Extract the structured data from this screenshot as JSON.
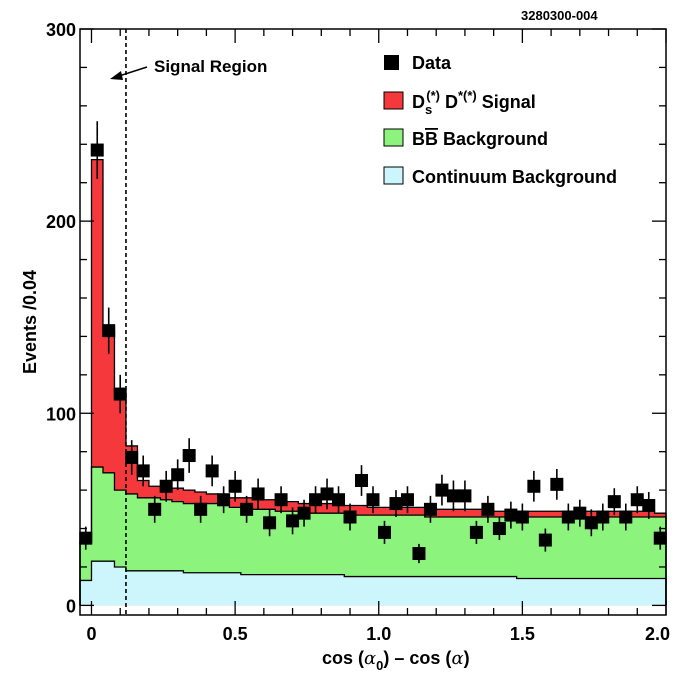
{
  "chart_data": {
    "type": "histogram",
    "plot_id": "3280300-004",
    "xlabel": "cos (α₀) – cos (α)",
    "ylabel": "Events /0.04",
    "xlim": [
      -0.04,
      2.0
    ],
    "ylim": [
      -5,
      300
    ],
    "x_ticks": [
      0,
      0.5,
      1.0,
      1.5,
      2.0
    ],
    "x_tick_labels": [
      "0",
      "0.5",
      "1.0",
      "1.5",
      "2.0"
    ],
    "y_ticks": [
      0,
      100,
      200,
      300
    ],
    "y_tick_labels": [
      "0",
      "100",
      "200",
      "300"
    ],
    "bin_edges": [
      -0.04,
      0.0,
      0.04,
      0.08,
      0.12,
      0.16,
      0.2,
      0.24,
      0.28,
      0.32,
      0.36,
      0.4,
      0.44,
      0.48,
      0.52,
      0.56,
      0.6,
      0.64,
      0.68,
      0.72,
      0.76,
      0.8,
      0.84,
      0.88,
      0.92,
      0.96,
      1.0,
      1.04,
      1.08,
      1.12,
      1.16,
      1.2,
      1.24,
      1.28,
      1.32,
      1.36,
      1.4,
      1.44,
      1.48,
      1.52,
      1.56,
      1.6,
      1.64,
      1.68,
      1.72,
      1.76,
      1.8,
      1.84,
      1.88,
      1.92,
      1.96,
      2.0
    ],
    "annotation": {
      "text": "Signal Region",
      "cut_x": 0.12
    },
    "series": [
      {
        "name": "Continuum Background",
        "color": "#ccf6fc",
        "cumulative_values": [
          13,
          23,
          23,
          20,
          18,
          18,
          18,
          18,
          18,
          17,
          17,
          17,
          17,
          17,
          16,
          16,
          16,
          16,
          16,
          16,
          16,
          16,
          16,
          15,
          15,
          15,
          15,
          15,
          15,
          15,
          15,
          15,
          15,
          15,
          15,
          15,
          15,
          15,
          14,
          14,
          14,
          14,
          14,
          14,
          14,
          14,
          14,
          14,
          14,
          14,
          14
        ]
      },
      {
        "name": "B B̄ Background",
        "color": "#8cf47c",
        "cumulative_values": [
          33,
          72,
          69,
          60,
          58,
          56,
          56,
          55,
          54,
          53,
          53,
          53,
          52,
          51,
          51,
          50,
          50,
          49,
          49,
          49,
          48,
          48,
          48,
          48,
          47,
          47,
          47,
          47,
          47,
          47,
          46,
          46,
          46,
          46,
          46,
          46,
          46,
          46,
          46,
          46,
          46,
          46,
          46,
          46,
          46,
          46,
          46,
          46,
          46,
          46,
          46
        ]
      },
      {
        "name": "Ds(*) D*(*) Signal",
        "color": "#f4383c",
        "cumulative_values": [
          33,
          232,
          143,
          110,
          83,
          65,
          62,
          61,
          61,
          60,
          59,
          58,
          57,
          56,
          56,
          55,
          55,
          54,
          54,
          53,
          53,
          53,
          52,
          52,
          52,
          51,
          51,
          51,
          51,
          51,
          51,
          50,
          50,
          50,
          50,
          50,
          49,
          49,
          49,
          49,
          49,
          49,
          49,
          49,
          49,
          49,
          49,
          49,
          49,
          49,
          48
        ]
      }
    ],
    "data": {
      "name": "Data",
      "x": [
        -0.02,
        0.02,
        0.06,
        0.1,
        0.14,
        0.18,
        0.22,
        0.26,
        0.3,
        0.34,
        0.38,
        0.42,
        0.46,
        0.5,
        0.54,
        0.58,
        0.62,
        0.66,
        0.7,
        0.74,
        0.78,
        0.82,
        0.86,
        0.9,
        0.94,
        0.98,
        1.02,
        1.06,
        1.1,
        1.14,
        1.18,
        1.22,
        1.26,
        1.3,
        1.34,
        1.38,
        1.42,
        1.46,
        1.5,
        1.54,
        1.58,
        1.62,
        1.66,
        1.7,
        1.74,
        1.78,
        1.82,
        1.86,
        1.9,
        1.94,
        1.98
      ],
      "y": [
        35,
        237,
        143,
        110,
        77,
        70,
        50,
        62,
        68,
        78,
        50,
        70,
        55,
        62,
        50,
        58,
        43,
        55,
        44,
        48,
        55,
        58,
        55,
        46,
        65,
        55,
        38,
        53,
        55,
        27,
        50,
        60,
        57,
        57,
        38,
        50,
        40,
        47,
        46,
        62,
        34,
        63,
        46,
        48,
        43,
        46,
        54,
        46,
        55,
        52,
        35
      ],
      "err": [
        6,
        15,
        12,
        10,
        9,
        8,
        7,
        8,
        8,
        9,
        7,
        8,
        7,
        8,
        7,
        8,
        7,
        7,
        7,
        7,
        7,
        8,
        7,
        7,
        8,
        7,
        6,
        7,
        7,
        5,
        7,
        8,
        8,
        8,
        6,
        7,
        6,
        7,
        7,
        8,
        6,
        8,
        7,
        7,
        7,
        7,
        7,
        7,
        7,
        7,
        6
      ]
    },
    "legend": {
      "position": "top-right",
      "entries": [
        {
          "label": "Data",
          "symbol": "square",
          "color": "#000000"
        },
        {
          "label_main": "D",
          "label_sub": "s",
          "label_sup": "(*)",
          "label_rest": " D",
          "label_sup2": "*(*)",
          "label_end": " Signal",
          "symbol": "box",
          "color": "#f4383c"
        },
        {
          "label_main": "B",
          "label_overline": "B",
          "label_end": " Background",
          "symbol": "box",
          "color": "#8cf47c"
        },
        {
          "label": "Continuum Background",
          "symbol": "box",
          "color": "#ccf6fc"
        }
      ]
    }
  }
}
